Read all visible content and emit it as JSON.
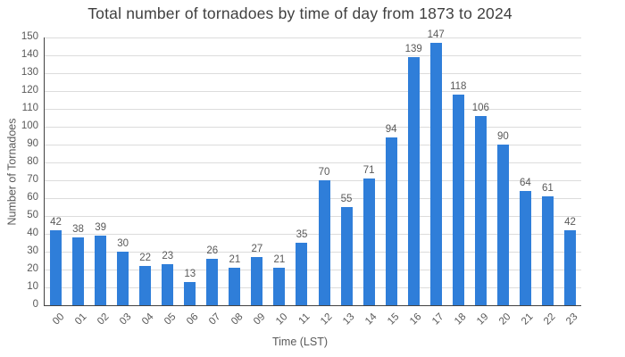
{
  "chart_data": {
    "type": "bar",
    "title": "Total number of tornadoes by time of day from 1873 to 2024",
    "xlabel": "Time (LST)",
    "ylabel": "Number of Tornadoes",
    "categories": [
      "00",
      "01",
      "02",
      "03",
      "04",
      "05",
      "06",
      "07",
      "08",
      "09",
      "10",
      "11",
      "12",
      "13",
      "14",
      "15",
      "16",
      "17",
      "18",
      "19",
      "20",
      "21",
      "22",
      "23"
    ],
    "values": [
      42,
      38,
      39,
      30,
      22,
      23,
      13,
      26,
      21,
      27,
      21,
      35,
      70,
      55,
      71,
      94,
      139,
      147,
      118,
      106,
      90,
      64,
      61,
      42
    ],
    "ylim": [
      0,
      150
    ],
    "ytick_step": 10,
    "grid": true,
    "legend": "none",
    "bar_value_labels_shown": true,
    "colors": {
      "bar": "#2f7ed9",
      "grid": "#dcdcdc",
      "axis": "#424242",
      "text": "#595959",
      "title": "#3f3f3f"
    }
  }
}
